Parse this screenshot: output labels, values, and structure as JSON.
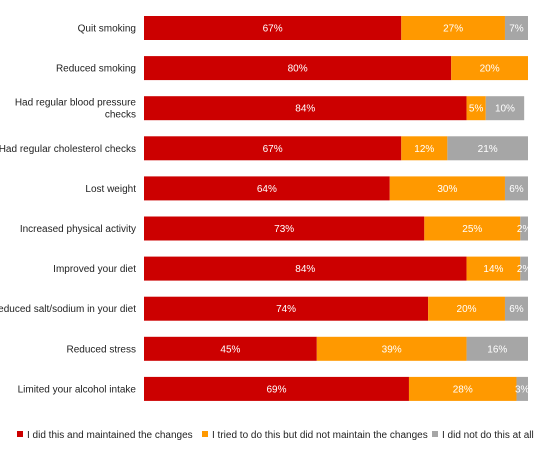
{
  "chart_data": {
    "type": "bar",
    "orientation": "horizontal",
    "stacked": true,
    "title": "",
    "xlabel": "",
    "ylabel": "",
    "xlim": [
      0,
      100
    ],
    "grid": false,
    "legend_position": "bottom",
    "categories": [
      "Quit smoking",
      "Reduced smoking",
      "Had regular blood pressure checks",
      "Had regular cholesterol checks",
      "Lost weight",
      "Increased physical activity",
      "Improved your diet",
      "Reduced salt/sodium in your diet",
      "Reduced stress",
      "Limited your alcohol intake"
    ],
    "category_label_lines": [
      [
        "Quit smoking"
      ],
      [
        "Reduced smoking"
      ],
      [
        "Had regular blood pressure",
        "checks"
      ],
      [
        "Had regular cholesterol checks"
      ],
      [
        "Lost weight"
      ],
      [
        "Increased physical activity"
      ],
      [
        "Improved your diet"
      ],
      [
        "Reduced salt/sodium in your diet"
      ],
      [
        "Reduced stress"
      ],
      [
        "Limited your alcohol intake"
      ]
    ],
    "series": [
      {
        "name": "I did this and maintained the changes",
        "color": "#cc0000",
        "values": [
          67,
          80,
          84,
          67,
          64,
          73,
          84,
          74,
          45,
          69
        ],
        "labels": [
          "67%",
          "80%",
          "84%",
          "67%",
          "64%",
          "73%",
          "84%",
          "74%",
          "45%",
          "69%"
        ]
      },
      {
        "name": "I tried to do this but did not maintain the changes",
        "color": "#ff9900",
        "values": [
          27,
          20,
          5,
          12,
          30,
          25,
          14,
          20,
          39,
          28
        ],
        "labels": [
          "27%",
          "20%",
          "5%",
          "12%",
          "30%",
          "25%",
          "14%",
          "20%",
          "39%",
          "28%"
        ]
      },
      {
        "name": "I did not do this at all",
        "color": "#a6a6a6",
        "values": [
          7,
          0,
          10,
          21,
          6,
          2,
          2,
          6,
          16,
          3
        ],
        "labels": [
          "7%",
          "",
          "10%",
          "21%",
          "6%",
          "2%",
          "2%",
          "6%",
          "16%",
          "3%"
        ]
      }
    ]
  }
}
